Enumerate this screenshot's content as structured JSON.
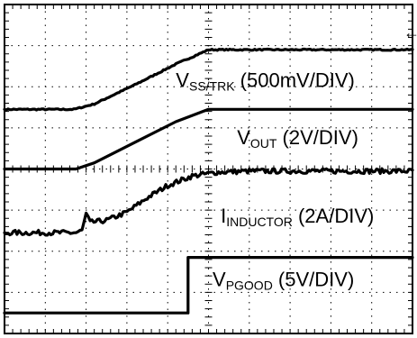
{
  "chart_data": {
    "type": "line",
    "title": "",
    "xlabel": "",
    "ylabel": "",
    "grid": true,
    "divisions": {
      "x": 10,
      "y": 8
    },
    "xlim": [
      0,
      10
    ],
    "ylim": [
      0,
      8
    ],
    "series": [
      {
        "name": "V",
        "subscript": "SS/TRK",
        "scale": " (500mV/DIV)",
        "points": [
          [
            0,
            5.45
          ],
          [
            1.7,
            5.45
          ],
          [
            2.2,
            5.58
          ],
          [
            3.2,
            6.05
          ],
          [
            4.2,
            6.55
          ],
          [
            5.0,
            6.9
          ],
          [
            6.0,
            6.9
          ],
          [
            10,
            6.9
          ]
        ],
        "noise": 0.015,
        "label_pos": [
          4.2,
          6.0
        ]
      },
      {
        "name": "V",
        "subscript": "OUT",
        "scale": " (2V/DIV)",
        "points": [
          [
            0,
            4.0
          ],
          [
            1.75,
            4.0
          ],
          [
            2.2,
            4.15
          ],
          [
            3.2,
            4.65
          ],
          [
            4.2,
            5.15
          ],
          [
            5.0,
            5.45
          ],
          [
            6.0,
            5.45
          ],
          [
            10,
            5.45
          ]
        ],
        "noise": 0.0,
        "label_pos": [
          5.7,
          4.6
        ]
      },
      {
        "name": "I",
        "subscript": "INDUCTOR",
        "scale": " (2A/DIV)",
        "points": [
          [
            0,
            2.45
          ],
          [
            1.75,
            2.45
          ],
          [
            1.9,
            2.5
          ],
          [
            2.0,
            2.9
          ],
          [
            2.1,
            2.7
          ],
          [
            2.5,
            2.75
          ],
          [
            3.0,
            2.95
          ],
          [
            3.5,
            3.3
          ],
          [
            4.0,
            3.6
          ],
          [
            4.6,
            3.83
          ],
          [
            5.2,
            3.92
          ],
          [
            6.0,
            3.95
          ],
          [
            10,
            3.95
          ]
        ],
        "noise": 0.06,
        "label_pos": [
          5.3,
          2.7
        ]
      },
      {
        "name": "V",
        "subscript": "PGOOD",
        "scale": " (5V/DIV)",
        "points": [
          [
            0,
            0.5
          ],
          [
            4.5,
            0.5
          ],
          [
            4.5,
            1.85
          ],
          [
            10,
            1.85
          ]
        ],
        "noise": 0.0,
        "label_pos": [
          5.1,
          1.15
        ]
      }
    ],
    "annotations": [
      "←"
    ]
  }
}
